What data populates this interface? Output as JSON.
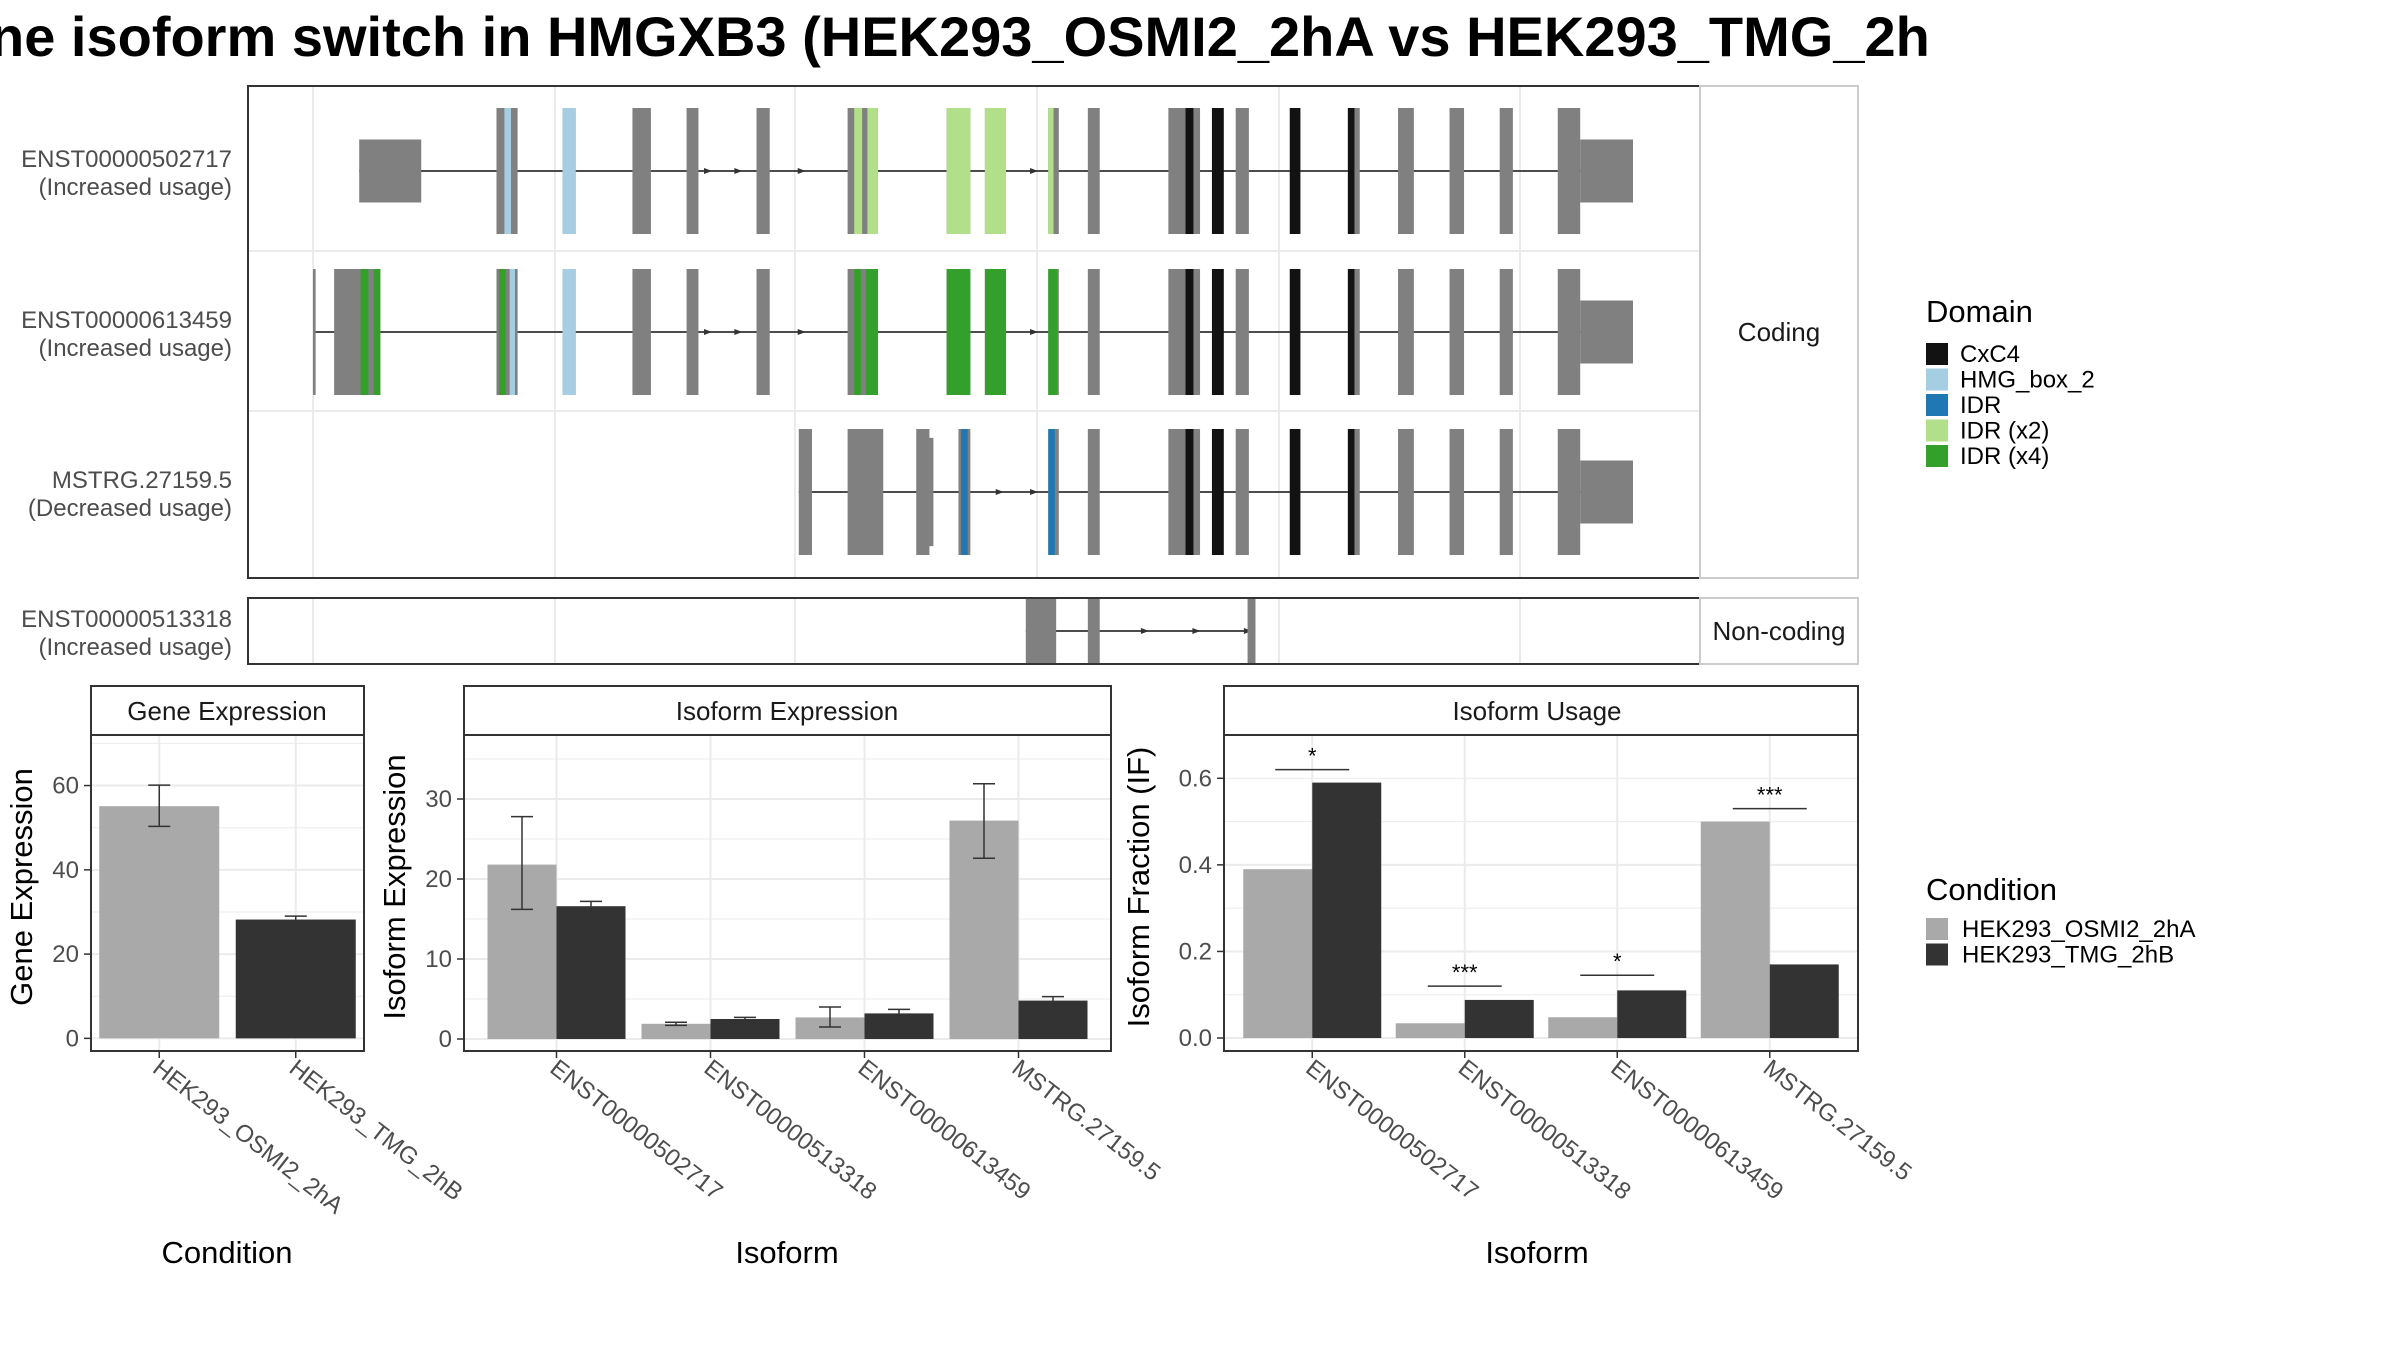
{
  "title": "ne isoform switch in HMGXB3 (HEK293_OSMI2_2hA vs HEK293_TMG_2h",
  "colors": {
    "cond_a": "#a9a9a9",
    "cond_b": "#333333",
    "exon": "#808080",
    "CxC4": "#121212",
    "HMG_box_2": "#a6cee3",
    "IDR": "#1f78b4",
    "IDR (x2)": "#b2df8a",
    "IDR (x4)": "#33a02c"
  },
  "facets": {
    "coding": "Coding",
    "noncoding": "Non-coding"
  },
  "transcripts": [
    {
      "id": "ENST00000502717",
      "note": "(Increased usage)",
      "group": "coding",
      "exons": [
        {
          "s": 0.035,
          "e": 0.082,
          "big": true
        },
        {
          "s": 0.139,
          "e": 0.155
        },
        {
          "s": 0.189,
          "e": 0.199
        },
        {
          "s": 0.242,
          "e": 0.256
        },
        {
          "s": 0.283,
          "e": 0.292
        },
        {
          "s": 0.336,
          "e": 0.346
        },
        {
          "s": 0.405,
          "e": 0.428
        },
        {
          "s": 0.48,
          "e": 0.498
        },
        {
          "s": 0.509,
          "e": 0.525
        },
        {
          "s": 0.557,
          "e": 0.565
        },
        {
          "s": 0.587,
          "e": 0.596
        },
        {
          "s": 0.648,
          "e": 0.672
        },
        {
          "s": 0.699,
          "e": 0.709
        },
        {
          "s": 0.74,
          "e": 0.748
        },
        {
          "s": 0.784,
          "e": 0.793
        },
        {
          "s": 0.822,
          "e": 0.834
        },
        {
          "s": 0.861,
          "e": 0.872
        },
        {
          "s": 0.899,
          "e": 0.909
        },
        {
          "s": 0.943,
          "e": 0.96
        },
        {
          "s": 0.96,
          "e": 1.0,
          "big": true
        }
      ],
      "domains": [
        {
          "s": 0.145,
          "e": 0.15,
          "d": "HMG_box_2"
        },
        {
          "s": 0.189,
          "e": 0.199,
          "d": "HMG_box_2"
        },
        {
          "s": 0.41,
          "e": 0.416,
          "d": "IDR (x2)"
        },
        {
          "s": 0.42,
          "e": 0.428,
          "d": "IDR (x2)"
        },
        {
          "s": 0.48,
          "e": 0.498,
          "d": "IDR (x2)"
        },
        {
          "s": 0.509,
          "e": 0.525,
          "d": "IDR (x2)"
        },
        {
          "s": 0.557,
          "e": 0.561,
          "d": "IDR (x2)"
        },
        {
          "s": 0.661,
          "e": 0.667,
          "d": "CxC4"
        },
        {
          "s": 0.681,
          "e": 0.69,
          "d": "CxC4"
        },
        {
          "s": 0.74,
          "e": 0.748,
          "d": "CxC4"
        },
        {
          "s": 0.784,
          "e": 0.789,
          "d": "CxC4"
        }
      ],
      "arrows": [
        0.3,
        0.323,
        0.371,
        0.521,
        0.547
      ]
    },
    {
      "id": "ENST00000613459",
      "note": "(Increased usage)",
      "group": "coding",
      "exons": [
        {
          "s": 0.0,
          "e": 0.002
        },
        {
          "s": 0.016,
          "e": 0.051
        },
        {
          "s": 0.139,
          "e": 0.155
        },
        {
          "s": 0.189,
          "e": 0.199
        },
        {
          "s": 0.242,
          "e": 0.256
        },
        {
          "s": 0.283,
          "e": 0.292
        },
        {
          "s": 0.336,
          "e": 0.346
        },
        {
          "s": 0.405,
          "e": 0.428
        },
        {
          "s": 0.48,
          "e": 0.498
        },
        {
          "s": 0.509,
          "e": 0.525
        },
        {
          "s": 0.557,
          "e": 0.565
        },
        {
          "s": 0.587,
          "e": 0.596
        },
        {
          "s": 0.648,
          "e": 0.672
        },
        {
          "s": 0.699,
          "e": 0.709
        },
        {
          "s": 0.74,
          "e": 0.748
        },
        {
          "s": 0.784,
          "e": 0.793
        },
        {
          "s": 0.822,
          "e": 0.834
        },
        {
          "s": 0.861,
          "e": 0.872
        },
        {
          "s": 0.899,
          "e": 0.909
        },
        {
          "s": 0.943,
          "e": 0.96
        },
        {
          "s": 0.96,
          "e": 1.0,
          "big": true
        }
      ],
      "domains": [
        {
          "s": 0.036,
          "e": 0.042,
          "d": "IDR (x4)"
        },
        {
          "s": 0.046,
          "e": 0.051,
          "d": "IDR (x4)"
        },
        {
          "s": 0.141,
          "e": 0.146,
          "d": "IDR (x4)"
        },
        {
          "s": 0.149,
          "e": 0.153,
          "d": "HMG_box_2"
        },
        {
          "s": 0.189,
          "e": 0.199,
          "d": "HMG_box_2"
        },
        {
          "s": 0.41,
          "e": 0.415,
          "d": "IDR (x4)"
        },
        {
          "s": 0.419,
          "e": 0.428,
          "d": "IDR (x4)"
        },
        {
          "s": 0.48,
          "e": 0.498,
          "d": "IDR (x4)"
        },
        {
          "s": 0.509,
          "e": 0.525,
          "d": "IDR (x4)"
        },
        {
          "s": 0.557,
          "e": 0.564,
          "d": "IDR (x4)"
        },
        {
          "s": 0.661,
          "e": 0.667,
          "d": "CxC4"
        },
        {
          "s": 0.681,
          "e": 0.69,
          "d": "CxC4"
        },
        {
          "s": 0.74,
          "e": 0.748,
          "d": "CxC4"
        },
        {
          "s": 0.784,
          "e": 0.789,
          "d": "CxC4"
        }
      ],
      "arrows": [
        0.3,
        0.323,
        0.371,
        0.521,
        0.547
      ]
    },
    {
      "id": "MSTRG.27159.5",
      "note": "(Decreased usage)",
      "group": "coding",
      "exons": [
        {
          "s": 0.368,
          "e": 0.378
        },
        {
          "s": 0.405,
          "e": 0.432
        },
        {
          "s": 0.457,
          "e": 0.467
        },
        {
          "s": 0.467,
          "e": 0.47,
          "thin": true
        },
        {
          "s": 0.489,
          "e": 0.498
        },
        {
          "s": 0.557,
          "e": 0.565
        },
        {
          "s": 0.587,
          "e": 0.596
        },
        {
          "s": 0.648,
          "e": 0.672
        },
        {
          "s": 0.699,
          "e": 0.709
        },
        {
          "s": 0.74,
          "e": 0.748
        },
        {
          "s": 0.784,
          "e": 0.793
        },
        {
          "s": 0.822,
          "e": 0.834
        },
        {
          "s": 0.861,
          "e": 0.872
        },
        {
          "s": 0.899,
          "e": 0.909
        },
        {
          "s": 0.943,
          "e": 0.96
        },
        {
          "s": 0.96,
          "e": 1.0,
          "big": true
        }
      ],
      "domains": [
        {
          "s": 0.491,
          "e": 0.496,
          "d": "IDR"
        },
        {
          "s": 0.557,
          "e": 0.562,
          "d": "IDR"
        },
        {
          "s": 0.661,
          "e": 0.667,
          "d": "CxC4"
        },
        {
          "s": 0.681,
          "e": 0.69,
          "d": "CxC4"
        },
        {
          "s": 0.74,
          "e": 0.748,
          "d": "CxC4"
        },
        {
          "s": 0.784,
          "e": 0.789,
          "d": "CxC4"
        }
      ],
      "arrows": [
        0.521,
        0.547
      ]
    },
    {
      "id": "ENST00000513318",
      "note": "(Increased usage)",
      "group": "noncoding",
      "exons": [
        {
          "s": 0.54,
          "e": 0.563
        },
        {
          "s": 0.587,
          "e": 0.596
        },
        {
          "s": 0.708,
          "e": 0.714
        }
      ],
      "domains": [],
      "arrows": [
        0.631,
        0.67,
        0.709
      ]
    }
  ],
  "legend_domain": {
    "title": "Domain",
    "items": [
      "CxC4",
      "HMG_box_2",
      "IDR",
      "IDR (x2)",
      "IDR (x4)"
    ]
  },
  "legend_condition": {
    "title": "Condition",
    "items": [
      "HEK293_OSMI2_2hA",
      "HEK293_TMG_2hB"
    ]
  },
  "chart_data": [
    {
      "type": "bar",
      "title": "Gene Expression",
      "xlabel": "Condition",
      "ylabel": "Gene Expression",
      "ylim": [
        -3,
        72
      ],
      "yticks": [
        0,
        20,
        40,
        60
      ],
      "categories": [
        "HEK293_OSMI2_2hA",
        "HEK293_TMG_2hB"
      ],
      "series": [
        {
          "name": "HEK293_OSMI2_2hA",
          "values": [
            55.1,
            null
          ],
          "err": [
            [
              50.3,
              60.1
            ],
            null
          ]
        },
        {
          "name": "HEK293_TMG_2hB",
          "values": [
            null,
            28.2
          ],
          "err": [
            null,
            [
              27.5,
              29.0
            ]
          ]
        }
      ],
      "significance": []
    },
    {
      "type": "bar",
      "title": "Isoform Expression",
      "xlabel": "Isoform",
      "ylabel": "Isoform Expression",
      "ylim": [
        -1.5,
        38
      ],
      "yticks": [
        0,
        10,
        20,
        30
      ],
      "categories": [
        "ENST00000502717",
        "ENST00000513318",
        "ENST00000613459",
        "MSTRG.27159.5"
      ],
      "series": [
        {
          "name": "HEK293_OSMI2_2hA",
          "values": [
            21.8,
            1.9,
            2.7,
            27.3
          ],
          "err": [
            [
              16.2,
              27.8
            ],
            [
              1.7,
              2.1
            ],
            [
              1.5,
              4.0
            ],
            [
              22.6,
              31.9
            ]
          ]
        },
        {
          "name": "HEK293_TMG_2hB",
          "values": [
            16.6,
            2.5,
            3.2,
            4.8
          ],
          "err": [
            [
              16.0,
              17.2
            ],
            [
              2.3,
              2.7
            ],
            [
              2.7,
              3.7
            ],
            [
              4.3,
              5.3
            ]
          ]
        }
      ],
      "significance": []
    },
    {
      "type": "bar",
      "title": "Isoform Usage",
      "xlabel": "Isoform",
      "ylabel": "Isoform Fraction (IF)",
      "ylim": [
        -0.03,
        0.7
      ],
      "yticks": [
        0.0,
        0.2,
        0.4,
        0.6
      ],
      "ytick_labels": [
        "0.0",
        "0.2",
        "0.4",
        "0.6"
      ],
      "categories": [
        "ENST00000502717",
        "ENST00000513318",
        "ENST00000613459",
        "MSTRG.27159.5"
      ],
      "series": [
        {
          "name": "HEK293_OSMI2_2hA",
          "values": [
            0.39,
            0.034,
            0.048,
            0.5
          ]
        },
        {
          "name": "HEK293_TMG_2hB",
          "values": [
            0.59,
            0.088,
            0.11,
            0.17
          ]
        }
      ],
      "significance": [
        {
          "label": "*",
          "y": 0.62
        },
        {
          "label": "***",
          "y": 0.12
        },
        {
          "label": "*",
          "y": 0.145
        },
        {
          "label": "***",
          "y": 0.53
        }
      ]
    }
  ]
}
